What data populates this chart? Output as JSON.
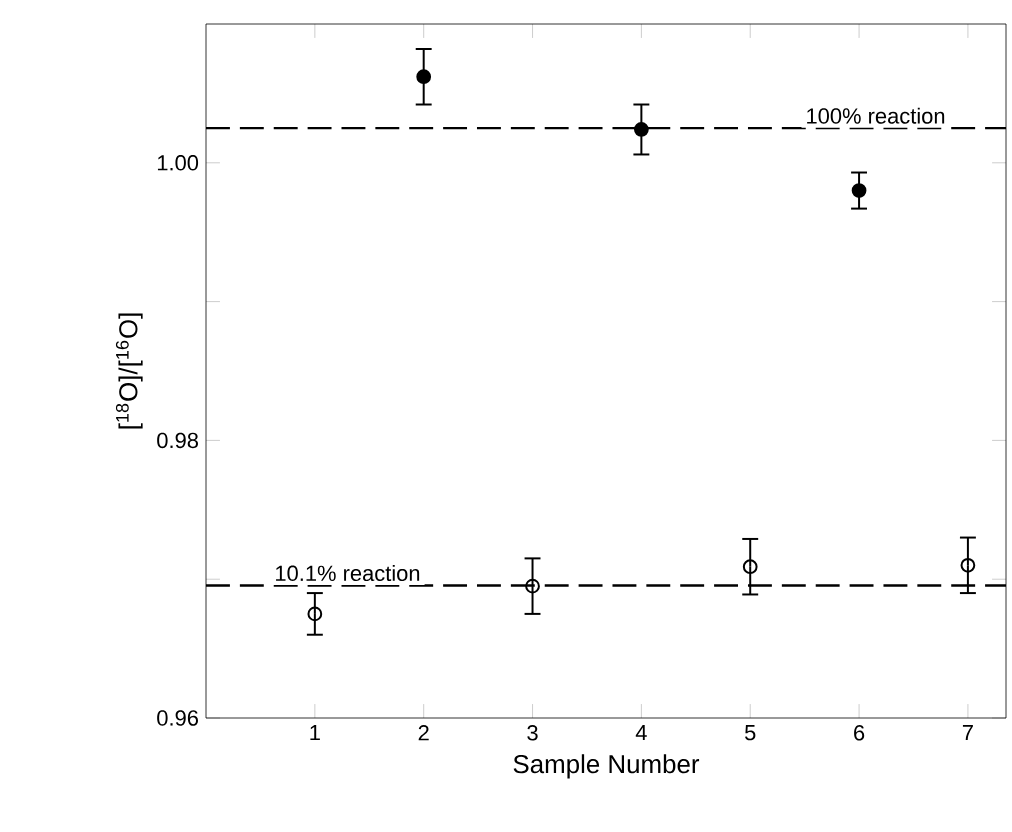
{
  "chart_data": {
    "type": "scatter",
    "xlabel": "Sample Number",
    "ylabel": "[$^{18}$O]/[$^{16}$O]",
    "x": [
      1,
      2,
      3,
      4,
      5,
      6,
      7
    ],
    "series": [
      {
        "color": "#000000",
        "marker": "circle",
        "values": [
          null,
          1.0062,
          null,
          1.0024,
          null,
          0.998,
          null
        ],
        "errors": [
          null,
          0.002,
          null,
          0.0018,
          null,
          0.0013,
          null
        ]
      },
      {
        "color": "#000000",
        "marker": "open circle",
        "values": [
          0.9675,
          null,
          0.9695,
          null,
          0.9709,
          null,
          0.971
        ],
        "errors": [
          0.0015,
          null,
          0.002,
          null,
          0.002,
          null,
          0.002
        ]
      }
    ],
    "xlim": [
      0,
      7.35
    ],
    "ylim": [
      0.96,
      1.01
    ],
    "xticks": [
      1,
      2,
      3,
      4,
      5,
      6,
      7
    ],
    "yticks": [
      {
        "value": 0.96,
        "label": "0.96"
      },
      {
        "value": 0.97,
        "label": null
      },
      {
        "value": 0.98,
        "label": "0.98"
      },
      {
        "value": 0.99,
        "label": null
      },
      {
        "value": 1.0,
        "label": "1.00"
      }
    ],
    "ref_lines": [
      {
        "axis": "y",
        "value": 1.0025,
        "label": "100% reaction",
        "line_style": "dashed"
      },
      {
        "axis": "y",
        "value": 0.96955,
        "label": "10.1% reaction",
        "line_style": "dashed"
      }
    ],
    "grid": false,
    "legend": false
  }
}
